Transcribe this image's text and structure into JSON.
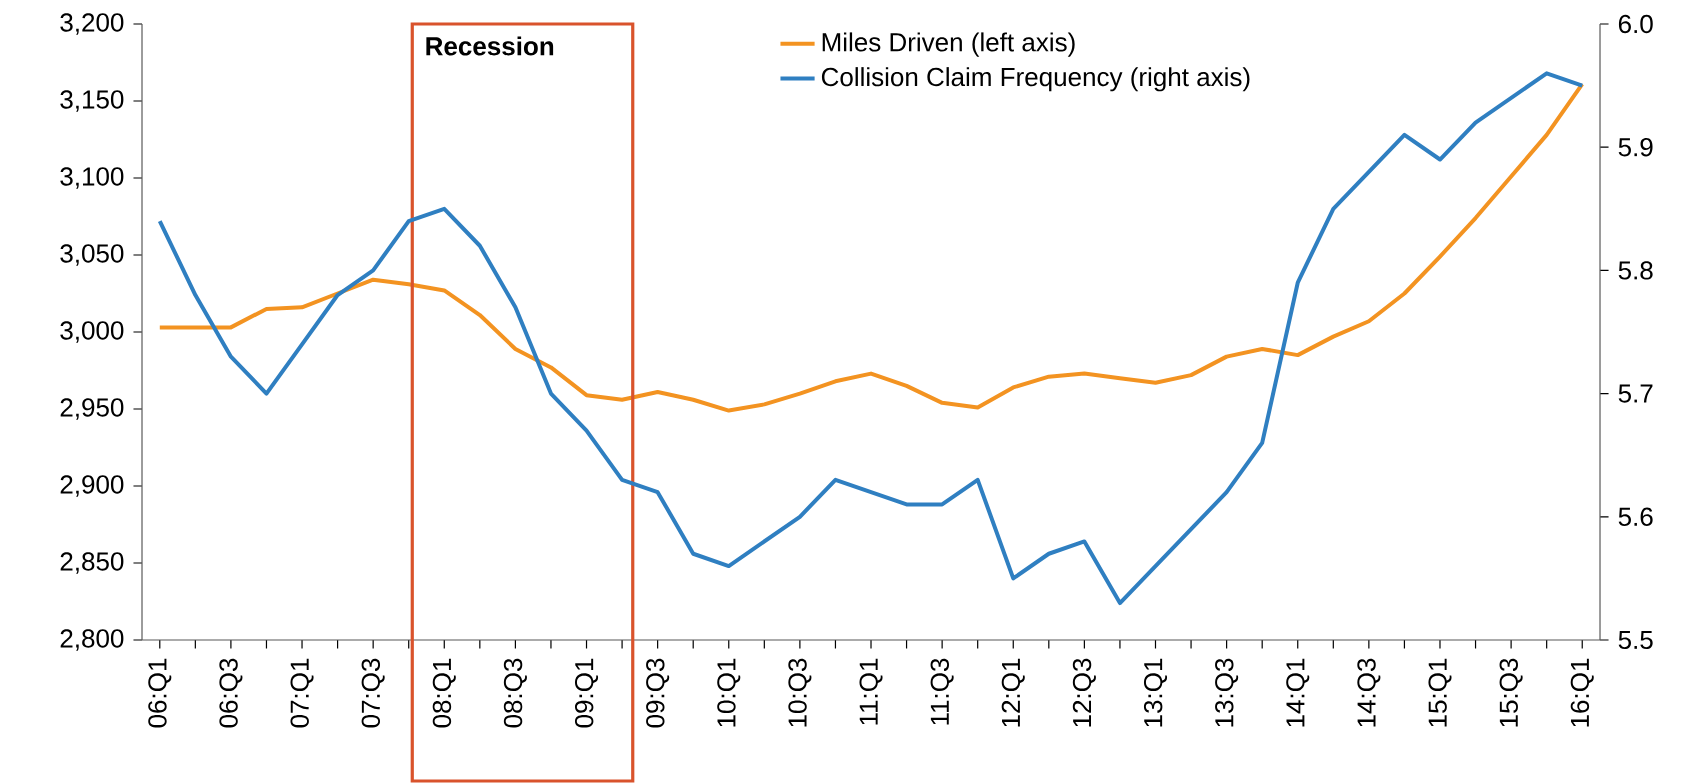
{
  "chart_data": {
    "type": "line",
    "categories": [
      "06:Q1",
      null,
      "06:Q3",
      null,
      "07:Q1",
      null,
      "07:Q3",
      null,
      "08:Q1",
      null,
      "08:Q3",
      null,
      "09:Q1",
      null,
      "09:Q3",
      null,
      "10:Q1",
      null,
      "10:Q3",
      null,
      "11:Q1",
      null,
      "11:Q3",
      null,
      "12:Q1",
      null,
      "12:Q3",
      null,
      "13:Q1",
      null,
      "13:Q3",
      null,
      "14:Q1",
      null,
      "14:Q3",
      null,
      "15:Q1",
      null,
      "15:Q3",
      null,
      "16:Q1"
    ],
    "series": [
      {
        "name": "Miles Driven (left axis)",
        "color": "#f39321",
        "axis": "y",
        "values": [
          3003,
          3003,
          3003,
          3015,
          3016,
          3025,
          3034,
          3031,
          3027,
          3011,
          2989,
          2977,
          2959,
          2956,
          2961,
          2956,
          2949,
          2953,
          2960,
          2968,
          2973,
          2965,
          2954,
          2951,
          2964,
          2971,
          2973,
          2970,
          2967,
          2972,
          2984,
          2989,
          2985,
          2997,
          3007,
          3025,
          3049,
          3074,
          3101,
          3128,
          3161
        ]
      },
      {
        "name": "Collision Claim Frequency (right axis)",
        "color": "#2f7fc1",
        "axis": "y2",
        "values": [
          5.84,
          5.78,
          5.73,
          5.7,
          5.74,
          5.78,
          5.8,
          5.84,
          5.85,
          5.82,
          5.77,
          5.7,
          5.67,
          5.63,
          5.62,
          5.57,
          5.56,
          5.58,
          5.6,
          5.63,
          5.62,
          5.61,
          5.61,
          5.63,
          5.55,
          5.57,
          5.58,
          5.53,
          5.56,
          5.59,
          5.62,
          5.66,
          5.79,
          5.85,
          5.88,
          5.91,
          5.89,
          5.92,
          5.94,
          5.96,
          5.95
        ]
      }
    ],
    "ylim": [
      2800,
      3200
    ],
    "yticks": [
      {
        "value": 2800,
        "label": "2,800"
      },
      {
        "value": 2850,
        "label": "2,850"
      },
      {
        "value": 2900,
        "label": "2,900"
      },
      {
        "value": 2950,
        "label": "2,950"
      },
      {
        "value": 3000,
        "label": "3,000"
      },
      {
        "value": 3050,
        "label": "3,050"
      },
      {
        "value": 3100,
        "label": "3,100"
      },
      {
        "value": 3150,
        "label": "3,150"
      },
      {
        "value": 3200,
        "label": "3,200"
      }
    ],
    "y2lim": [
      5.5,
      6.0
    ],
    "y2ticks": [
      5.5,
      5.6,
      5.7,
      5.8,
      5.9,
      {
        "value": 6.0,
        "label": "6.0"
      }
    ],
    "annotations": [
      "Recession"
    ],
    "legend": "top",
    "grid": false,
    "marker": "none",
    "line_style": "solid"
  }
}
